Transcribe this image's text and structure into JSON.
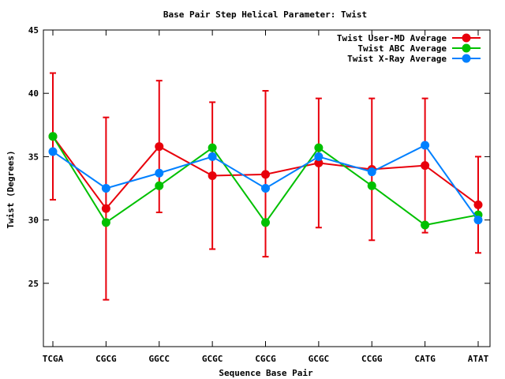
{
  "chart_data": {
    "type": "line",
    "title": "Base Pair Step Helical Parameter: Twist",
    "xlabel": "Sequence Base Pair",
    "ylabel": "Twist (Degrees)",
    "categories": [
      "TCGA",
      "CGCG",
      "GGCC",
      "GCGC",
      "CGCG",
      "GCGC",
      "CCGG",
      "CATG",
      "ATAT"
    ],
    "ylim": [
      20,
      45
    ],
    "yticks": [
      25,
      30,
      35,
      40,
      45
    ],
    "legend_position": "top-right",
    "series": [
      {
        "name": "Twist User-MD Average",
        "color": "#e8000b",
        "values": [
          36.6,
          30.9,
          35.8,
          33.5,
          33.6,
          34.5,
          34.0,
          34.3,
          31.2
        ],
        "error": [
          [
            31.6,
            41.6
          ],
          [
            23.7,
            38.1
          ],
          [
            30.6,
            41.0
          ],
          [
            27.7,
            39.3
          ],
          [
            27.1,
            40.2
          ],
          [
            29.4,
            39.6
          ],
          [
            28.4,
            39.6
          ],
          [
            29.0,
            39.6
          ],
          [
            27.4,
            35.0
          ]
        ]
      },
      {
        "name": "Twist ABC Average",
        "color": "#00c000",
        "values": [
          36.6,
          29.8,
          32.7,
          35.7,
          29.8,
          35.7,
          32.7,
          29.6,
          30.4
        ]
      },
      {
        "name": "Twist X-Ray Average",
        "color": "#0080ff",
        "values": [
          35.4,
          32.5,
          33.7,
          35.0,
          32.5,
          35.0,
          33.8,
          35.9,
          30.0
        ]
      }
    ]
  }
}
